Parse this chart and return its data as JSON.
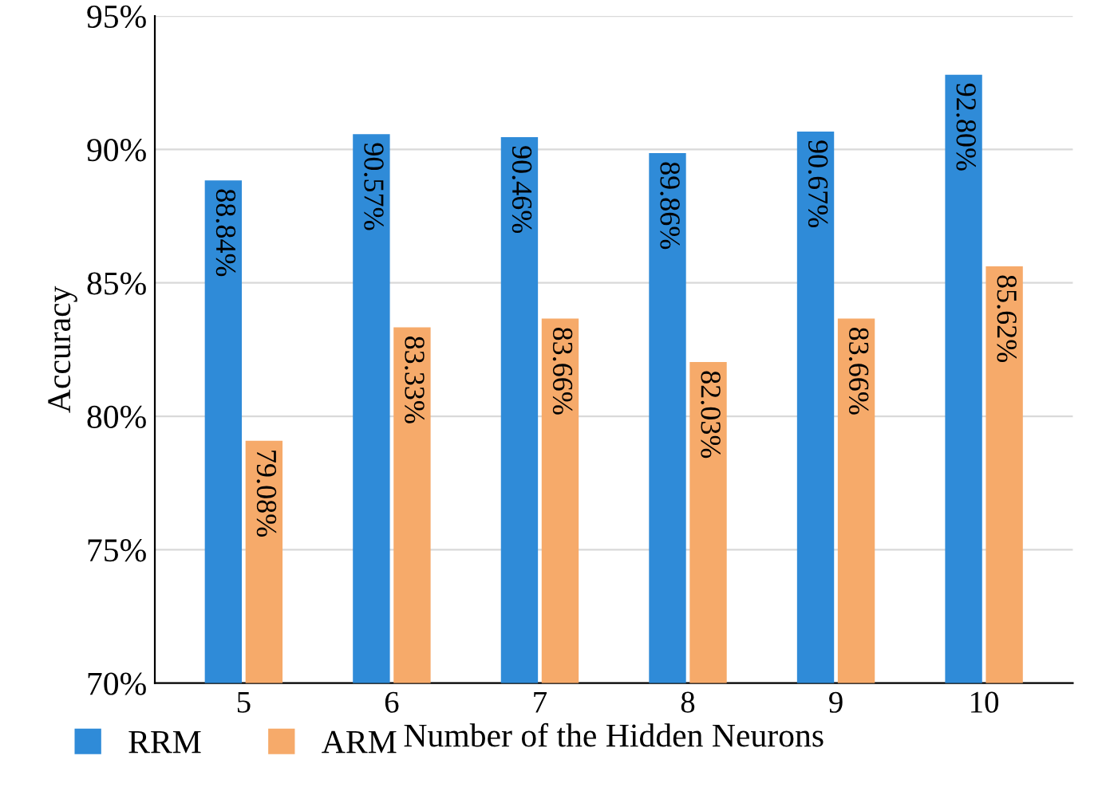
{
  "chart_data": {
    "type": "bar",
    "xlabel": "Number of the Hidden Neurons",
    "ylabel": "Accuracy",
    "categories": [
      "5",
      "6",
      "7",
      "8",
      "9",
      "10"
    ],
    "series": [
      {
        "name": "RRM",
        "color": "#2f8bd8",
        "values": [
          88.84,
          90.57,
          90.46,
          89.86,
          90.67,
          92.8
        ],
        "value_labels": [
          "88.84%",
          "90.57%",
          "90.46%",
          "89.86%",
          "90.67%",
          "92.80%"
        ]
      },
      {
        "name": "ARM",
        "color": "#f6aa6a",
        "values": [
          79.08,
          83.33,
          83.66,
          82.03,
          83.66,
          85.62
        ],
        "value_labels": [
          "79.08%",
          "83.33%",
          "83.66%",
          "82.03%",
          "83.66%",
          "85.62%"
        ]
      }
    ],
    "ylim": [
      70,
      95
    ],
    "yticks": [
      {
        "value": 70,
        "label": "70%"
      },
      {
        "value": 75,
        "label": "75%"
      },
      {
        "value": 80,
        "label": "80%"
      },
      {
        "value": 85,
        "label": "85%"
      },
      {
        "value": 90,
        "label": "90%"
      },
      {
        "value": 95,
        "label": "95%"
      }
    ],
    "grid": "y",
    "legend": "bottom left"
  }
}
